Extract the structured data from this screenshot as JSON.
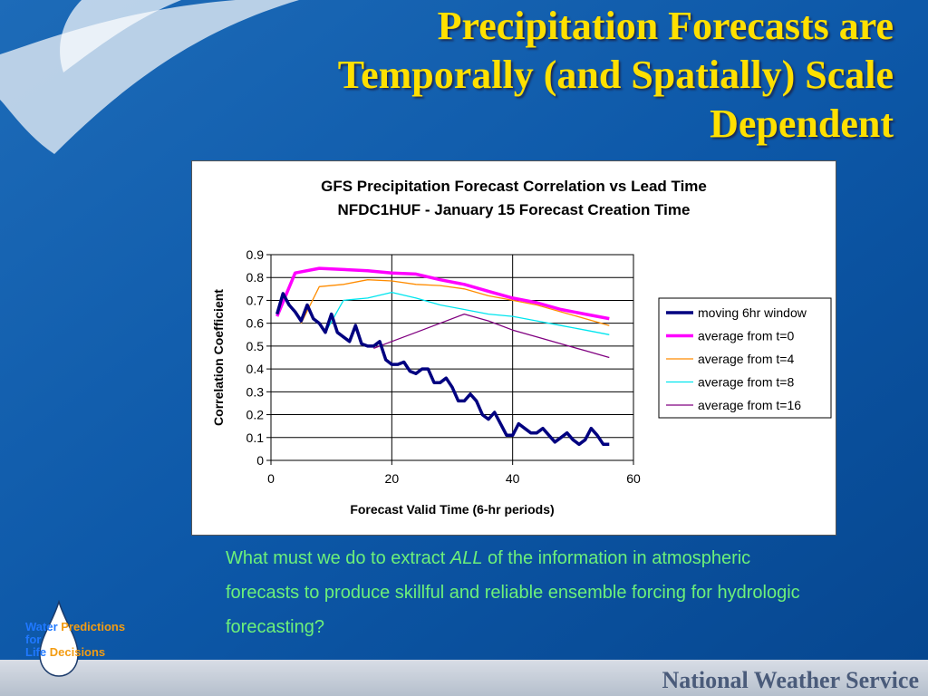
{
  "slide": {
    "title_lines": [
      "Precipitation Forecasts are",
      "Temporally (and Spatially) Scale",
      "Dependent"
    ],
    "question_parts": {
      "before": "What must we do to extract ",
      "emphasis": "ALL",
      "after": " of the information in atmospheric forecasts to produce skillful and reliable ensemble forcing for hydrologic forecasting?"
    },
    "logo": {
      "word1": "Water",
      "word2": "Predictions",
      "word3": "for",
      "word4": "Life",
      "word5": "Decisions"
    },
    "org_name": "National Weather Service",
    "colors": {
      "title": "#ffe000",
      "question": "#6cf07a",
      "background": "#0b4f9a"
    }
  },
  "chart_data": {
    "type": "line",
    "title": "GFS Precipitation Forecast Correlation vs Lead Time",
    "subtitle": "NFDC1HUF - January 15 Forecast Creation Time",
    "xlabel": "Forecast Valid Time (6-hr periods)",
    "ylabel": "Correlation Coefficient",
    "xlim": [
      0,
      60
    ],
    "ylim": [
      0,
      0.9
    ],
    "xticks": [
      0,
      20,
      40,
      60
    ],
    "yticks": [
      0,
      0.1,
      0.2,
      0.3,
      0.4,
      0.5,
      0.6,
      0.7,
      0.8,
      0.9
    ],
    "ytick_labels": [
      "0",
      "0.1",
      "0.2",
      "0.3",
      "0.4",
      "0.5",
      "0.6",
      "0.7",
      "0.8",
      "0.9"
    ],
    "grid": "vertical",
    "legend_position": "right",
    "series": [
      {
        "name": "moving 6hr window",
        "color": "#000080",
        "width": 3.5,
        "x": [
          1,
          2,
          3,
          4,
          5,
          6,
          7,
          8,
          9,
          10,
          11,
          12,
          13,
          14,
          15,
          16,
          17,
          18,
          19,
          20,
          21,
          22,
          23,
          24,
          25,
          26,
          27,
          28,
          29,
          30,
          31,
          32,
          33,
          34,
          35,
          36,
          37,
          38,
          39,
          40,
          41,
          42,
          43,
          44,
          45,
          46,
          47,
          48,
          49,
          50,
          51,
          52,
          53,
          54,
          55,
          56
        ],
        "y": [
          0.64,
          0.73,
          0.68,
          0.65,
          0.61,
          0.68,
          0.62,
          0.6,
          0.56,
          0.64,
          0.56,
          0.54,
          0.52,
          0.59,
          0.51,
          0.5,
          0.5,
          0.52,
          0.44,
          0.42,
          0.42,
          0.43,
          0.39,
          0.38,
          0.4,
          0.4,
          0.34,
          0.34,
          0.36,
          0.32,
          0.26,
          0.26,
          0.29,
          0.26,
          0.2,
          0.18,
          0.21,
          0.16,
          0.11,
          0.11,
          0.16,
          0.14,
          0.12,
          0.12,
          0.14,
          0.11,
          0.08,
          0.1,
          0.12,
          0.09,
          0.07,
          0.09,
          0.14,
          0.11,
          0.07,
          0.07
        ]
      },
      {
        "name": "average from t=0",
        "color": "#ff00ff",
        "width": 3.5,
        "x": [
          1,
          4,
          8,
          12,
          16,
          20,
          24,
          28,
          32,
          36,
          40,
          44,
          48,
          52,
          56
        ],
        "y": [
          0.63,
          0.82,
          0.84,
          0.835,
          0.83,
          0.82,
          0.815,
          0.79,
          0.77,
          0.74,
          0.71,
          0.69,
          0.66,
          0.64,
          0.62
        ]
      },
      {
        "name": "average from t=4",
        "color": "#ff8c00",
        "width": 1.3,
        "x": [
          5,
          8,
          12,
          16,
          20,
          24,
          28,
          32,
          36,
          40,
          44,
          48,
          52,
          56
        ],
        "y": [
          0.6,
          0.76,
          0.77,
          0.79,
          0.785,
          0.77,
          0.765,
          0.75,
          0.72,
          0.7,
          0.68,
          0.65,
          0.62,
          0.59
        ]
      },
      {
        "name": "average from t=8",
        "color": "#00e5ee",
        "width": 1.3,
        "x": [
          9,
          12,
          16,
          20,
          24,
          28,
          32,
          36,
          40,
          44,
          48,
          52,
          56
        ],
        "y": [
          0.56,
          0.7,
          0.71,
          0.735,
          0.71,
          0.68,
          0.66,
          0.64,
          0.63,
          0.61,
          0.59,
          0.57,
          0.55
        ]
      },
      {
        "name": "average from t=16",
        "color": "#800080",
        "width": 1.3,
        "x": [
          17,
          20,
          24,
          28,
          32,
          36,
          40,
          44,
          48,
          52,
          56
        ],
        "y": [
          0.49,
          0.52,
          0.56,
          0.6,
          0.64,
          0.61,
          0.57,
          0.54,
          0.51,
          0.48,
          0.45
        ]
      }
    ]
  }
}
